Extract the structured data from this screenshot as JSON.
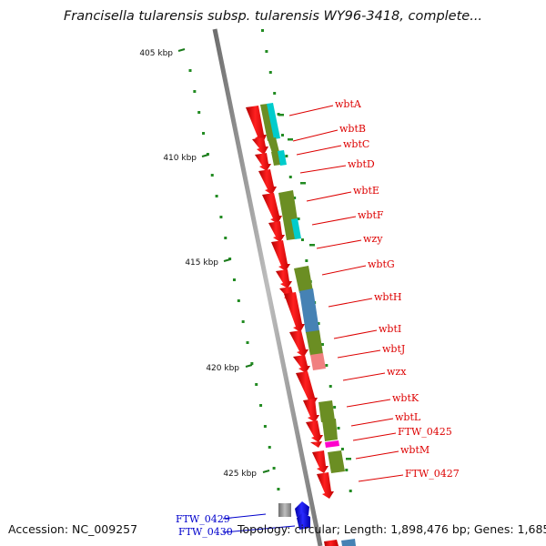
{
  "title": "Francisella tularensis subsp. tularensis WY96-3418, complete...",
  "footer": {
    "accession": "Accession: NC_009257",
    "topology": "Topology: circular; Length: 1,898,476 bp; Genes: 1,685"
  },
  "ticks": [
    {
      "label": "405 kbp"
    },
    {
      "label": "410 kbp"
    },
    {
      "label": "415 kbp"
    },
    {
      "label": "420 kbp"
    },
    {
      "label": "425 kbp"
    }
  ],
  "genes": [
    {
      "label": "wbtA",
      "color": "#dd0000"
    },
    {
      "label": "wbtB",
      "color": "#dd0000"
    },
    {
      "label": "wbtC",
      "color": "#dd0000"
    },
    {
      "label": "wbtD",
      "color": "#dd0000"
    },
    {
      "label": "wbtE",
      "color": "#dd0000"
    },
    {
      "label": "wbtF",
      "color": "#dd0000"
    },
    {
      "label": "wzy",
      "color": "#dd0000"
    },
    {
      "label": "wbtG",
      "color": "#dd0000"
    },
    {
      "label": "wbtH",
      "color": "#dd0000"
    },
    {
      "label": "wbtI",
      "color": "#dd0000"
    },
    {
      "label": "wbtJ",
      "color": "#dd0000"
    },
    {
      "label": "wzx",
      "color": "#dd0000"
    },
    {
      "label": "wbtK",
      "color": "#dd0000"
    },
    {
      "label": "wbtL",
      "color": "#dd0000"
    },
    {
      "label": "FTW_0425",
      "color": "#dd0000"
    },
    {
      "label": "wbtM",
      "color": "#dd0000"
    },
    {
      "label": "FTW_0427",
      "color": "#dd0000"
    },
    {
      "label": "FTW_0429",
      "color": "#0000cc"
    },
    {
      "label": "FTW_0430",
      "color": "#0000cc"
    }
  ],
  "colors": {
    "forward_cds": "#ff0000",
    "reverse_cds": "#0000ff",
    "backbone": "#8c8c8c",
    "cog_olive": "#6b8e23",
    "cog_cyan": "#00cccc",
    "cog_blue": "#4682b4",
    "cog_pink": "#f08080",
    "cog_magenta": "#ff00cc",
    "gc_dots": "#228b22"
  }
}
